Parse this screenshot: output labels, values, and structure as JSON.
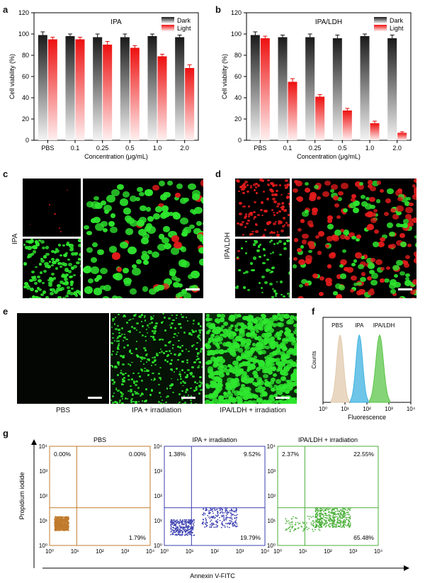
{
  "panel_letters": {
    "a": "a",
    "b": "b",
    "c": "c",
    "d": "d",
    "e": "e",
    "f": "f",
    "g": "g"
  },
  "colors": {
    "dark": "#333333",
    "light": "#ee1c1c",
    "green": "#2ee62e",
    "red": "#e21b1b",
    "pbs_gate": "#c07b2c",
    "ipa_gate": "#3b3fb0",
    "ldh_gate": "#4caf3a"
  },
  "chart_data": [
    {
      "id": "a",
      "type": "bar",
      "title": "IPA",
      "categories": [
        "PBS",
        "0.1",
        "0.25",
        "0.5",
        "1.0",
        "2.0"
      ],
      "xlabel": "Concentration (μg/mL)",
      "ylabel": "Cell viability (%)",
      "ylim": [
        0,
        120
      ],
      "yticks": [
        "0",
        "20",
        "40",
        "60",
        "80",
        "100",
        "120"
      ],
      "legend_position": "top-right",
      "series": [
        {
          "name": "Dark",
          "values": [
            99,
            98,
            97,
            97,
            98,
            97
          ],
          "errors": [
            3,
            2,
            3,
            3,
            2,
            2
          ]
        },
        {
          "name": "Light",
          "values": [
            95,
            95,
            90,
            87,
            79,
            68
          ],
          "errors": [
            2,
            2,
            3,
            2,
            2,
            3
          ]
        }
      ]
    },
    {
      "id": "b",
      "type": "bar",
      "title": "IPA/LDH",
      "categories": [
        "PBS",
        "0.1",
        "0.25",
        "0.5",
        "1.0",
        "2.0"
      ],
      "xlabel": "Concentration (μg/mL)",
      "ylabel": "Cell viability (%)",
      "ylim": [
        0,
        120
      ],
      "yticks": [
        "0",
        "20",
        "40",
        "60",
        "80",
        "100",
        "120"
      ],
      "legend_position": "top-right",
      "series": [
        {
          "name": "Dark",
          "values": [
            99,
            97,
            97,
            96,
            98,
            96
          ],
          "errors": [
            3,
            2,
            3,
            3,
            2,
            3
          ]
        },
        {
          "name": "Light",
          "values": [
            96,
            55,
            41,
            28,
            16,
            7
          ],
          "errors": [
            2,
            3,
            2,
            2,
            2,
            1
          ]
        }
      ]
    },
    {
      "id": "f",
      "type": "area",
      "title": "",
      "xlabel": "Fluorescence",
      "ylabel": "Counts",
      "x_scale": "log",
      "xlim": [
        1,
        10000
      ],
      "series": [
        {
          "name": "PBS",
          "peak": 6,
          "color": "#e2c9ad"
        },
        {
          "name": "IPA",
          "peak": 45,
          "color": "#3fb2e0"
        },
        {
          "name": "IPA/LDH",
          "peak": 380,
          "color": "#5cc54a"
        }
      ]
    },
    {
      "id": "g",
      "type": "scatter",
      "x_scale": "log",
      "y_scale": "log",
      "xlim": [
        1,
        10000
      ],
      "ylim": [
        1,
        10000
      ],
      "xlabel": "Annexin V-FITC",
      "ylabel": "Propidium iodide",
      "plots": [
        {
          "title": "PBS",
          "quadrants": {
            "ul": "0.00%",
            "ur": "0.00%",
            "ll": "",
            "lr": "1.79%"
          },
          "color": "#c07b2c"
        },
        {
          "title": "IPA + irradiation",
          "quadrants": {
            "ul": "1.38%",
            "ur": "9.52%",
            "ll": "",
            "lr": "19.79%"
          },
          "color": "#3b3fb0"
        },
        {
          "title": "IPA/LDH + irradiation",
          "quadrants": {
            "ul": "2.37%",
            "ur": "22.55%",
            "ll": "",
            "lr": "65.48%"
          },
          "color": "#4caf3a"
        }
      ]
    }
  ],
  "micrographs": {
    "c_side_label": "IPA",
    "d_side_label": "IPA/LDH",
    "e_captions": [
      "PBS",
      "IPA + irradiation",
      "IPA/LDH + irradiation"
    ]
  },
  "axis_titles": {
    "log_ticks": [
      "10⁰",
      "10¹",
      "10²",
      "10³",
      "10⁴"
    ]
  }
}
